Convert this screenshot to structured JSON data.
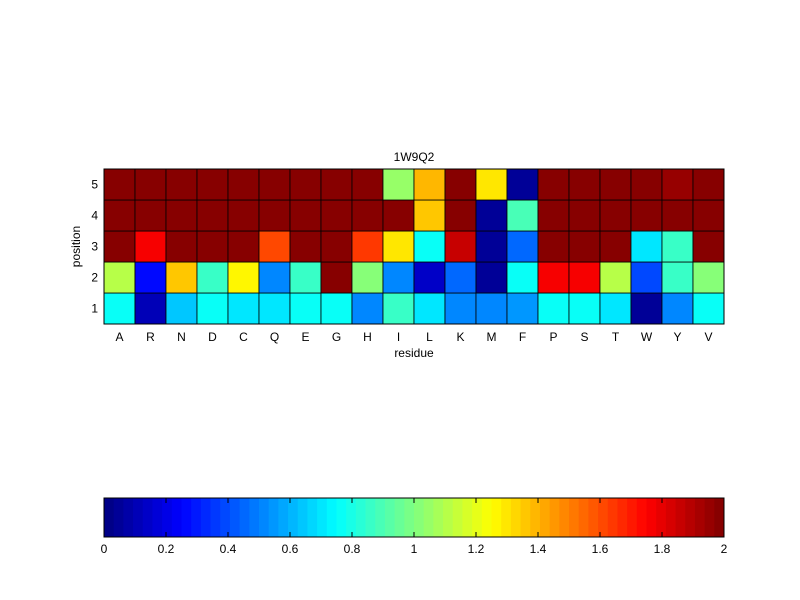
{
  "chart_data": [
    {
      "type": "heatmap",
      "title": "1W9Q2",
      "xlabel": "residue",
      "ylabel": "position",
      "x": [
        "A",
        "R",
        "N",
        "D",
        "C",
        "Q",
        "E",
        "G",
        "H",
        "I",
        "L",
        "K",
        "M",
        "F",
        "P",
        "S",
        "T",
        "W",
        "Y",
        "V"
      ],
      "y": [
        1,
        2,
        3,
        4,
        5
      ],
      "colormap": "jet",
      "clim": [
        0,
        2
      ],
      "grid": false,
      "values": [
        [
          0.75,
          0.1,
          0.65,
          0.75,
          0.7,
          0.7,
          0.75,
          0.75,
          0.5,
          0.85,
          0.7,
          0.5,
          0.5,
          0.55,
          0.75,
          0.75,
          0.7,
          0.05,
          0.5,
          0.75
        ],
        [
          1.1,
          0.25,
          1.35,
          0.85,
          1.25,
          0.5,
          0.85,
          2.0,
          1.0,
          0.5,
          0.15,
          0.45,
          0.05,
          0.75,
          1.75,
          1.75,
          1.1,
          0.4,
          0.85,
          1.0
        ],
        [
          2.0,
          1.75,
          2.0,
          2.0,
          2.0,
          1.6,
          2.0,
          2.0,
          1.65,
          1.3,
          0.75,
          1.85,
          0.05,
          0.45,
          2.0,
          2.0,
          2.0,
          0.7,
          0.85,
          2.0
        ],
        [
          2.0,
          2.0,
          2.0,
          2.0,
          2.0,
          2.0,
          2.0,
          2.0,
          2.0,
          2.0,
          1.35,
          2.0,
          0.05,
          0.9,
          2.0,
          2.0,
          2.0,
          2.0,
          2.0,
          2.0
        ],
        [
          2.0,
          2.0,
          2.0,
          2.0,
          2.0,
          2.0,
          2.0,
          2.0,
          2.0,
          1.05,
          1.4,
          2.0,
          1.3,
          0.05,
          2.0,
          2.0,
          2.0,
          2.0,
          1.95,
          2.0
        ]
      ]
    },
    {
      "type": "colorbar",
      "orientation": "horizontal",
      "range": [
        0,
        2
      ],
      "ticks": [
        "0",
        "0.2",
        "0.4",
        "0.6",
        "0.8",
        "1",
        "1.2",
        "1.4",
        "1.6",
        "1.8",
        "2"
      ]
    }
  ]
}
